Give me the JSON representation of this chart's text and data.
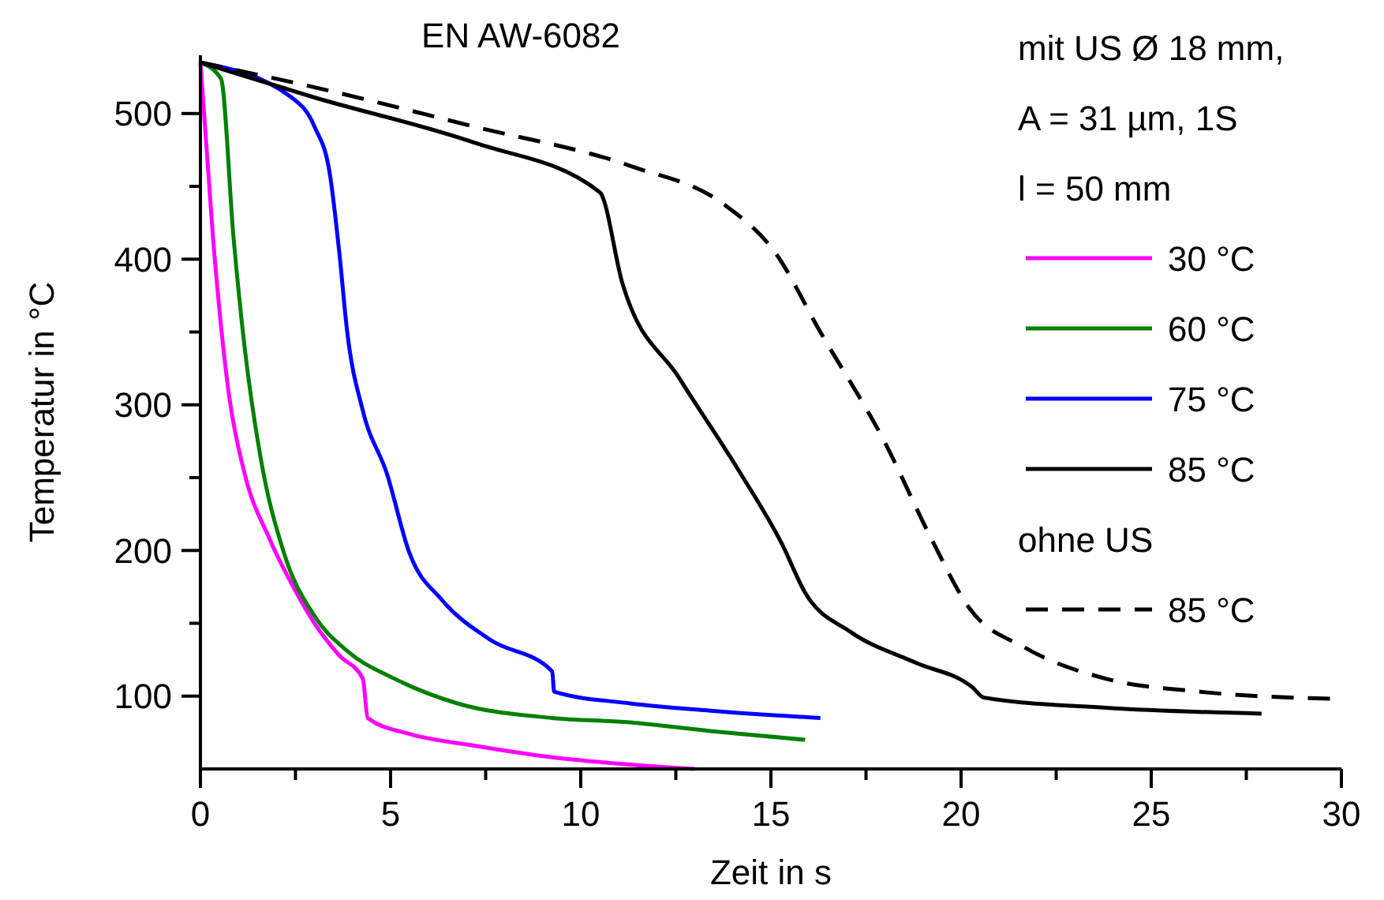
{
  "chart_data": {
    "type": "line",
    "title": "EN AW-6082",
    "xlabel": "Zeit in s",
    "ylabel": "Temperatur in °C",
    "legend_title": "mit US Ø 18 mm,\nA = 31 µm, 1S\nl = 50 mm",
    "annotations": [
      "ohne US"
    ],
    "legend": "right",
    "grid": false,
    "marker": "none",
    "xlim": [
      0,
      30
    ],
    "ylim": [
      50,
      540
    ],
    "xticks": [
      0,
      {
        "value": 2.5,
        "label": null
      },
      5,
      {
        "value": 7.5,
        "label": null
      },
      10,
      {
        "value": 12.5,
        "label": null
      },
      15,
      {
        "value": 17.5,
        "label": null
      },
      20,
      {
        "value": 22.5,
        "label": null
      },
      25,
      {
        "value": 27.5,
        "label": null
      },
      30
    ],
    "yticks": [
      {
        "value": 150,
        "label": null
      },
      100,
      200,
      300,
      400,
      500,
      {
        "value": 250,
        "label": null
      },
      {
        "value": 350,
        "label": null
      },
      {
        "value": 450,
        "label": null
      }
    ],
    "series": [
      {
        "name": "30 °C",
        "color": "#ff00ff",
        "line_style": "solid",
        "x": [
          0,
          0.33,
          0.75,
          1.16,
          1.8,
          2.4,
          3.0,
          3.65,
          4.27,
          4.4,
          5.5,
          7.2,
          9.25,
          11.3,
          13
        ],
        "values": [
          535,
          415,
          307,
          253,
          209,
          177,
          150,
          128,
          112,
          85,
          74,
          66,
          58,
          53,
          50
        ]
      },
      {
        "name": "60 °C",
        "color": "#008000",
        "line_style": "solid",
        "x": [
          0,
          0.54,
          0.87,
          1.16,
          1.58,
          2.2,
          3.0,
          3.86,
          5.1,
          6.76,
          9.25,
          11.3,
          13.4,
          15.9
        ],
        "values": [
          535,
          524,
          415,
          340,
          264,
          198,
          155,
          131,
          112,
          95,
          85,
          82,
          76,
          70
        ]
      },
      {
        "name": "75 °C",
        "color": "#0000ff",
        "line_style": "solid",
        "x": [
          0,
          2.4,
          3.0,
          3.4,
          3.65,
          3.86,
          4.27,
          4.9,
          5.5,
          6.35,
          7.6,
          9.25,
          9.3,
          11.3,
          13.4,
          16.3
        ],
        "values": [
          535,
          511,
          491,
          459,
          405,
          350,
          296,
          253,
          198,
          166,
          139,
          117,
          103,
          95,
          90,
          85
        ]
      },
      {
        "name": "85 °C",
        "color": "#000000",
        "line_style": "solid",
        "x": [
          0,
          3,
          7.2,
          10.5,
          11.1,
          12.6,
          14.2,
          15.3,
          15.9,
          17.1,
          18.8,
          20.3,
          20.6,
          23.8,
          27.9
        ],
        "values": [
          535,
          511,
          480,
          446,
          383,
          318,
          253,
          204,
          171,
          144,
          123,
          106,
          99,
          92,
          88
        ]
      },
      {
        "name": "85 °C",
        "color": "#000000",
        "line_style": "dashed",
        "x": [
          0,
          3,
          7.2,
          11.3,
          13.8,
          15.1,
          16.3,
          18,
          19.2,
          20.2,
          21.7,
          23.8,
          26.3,
          30
        ],
        "values": [
          535,
          518,
          491,
          464,
          437,
          405,
          350,
          274,
          209,
          161,
          133,
          112,
          103,
          98
        ]
      }
    ]
  }
}
